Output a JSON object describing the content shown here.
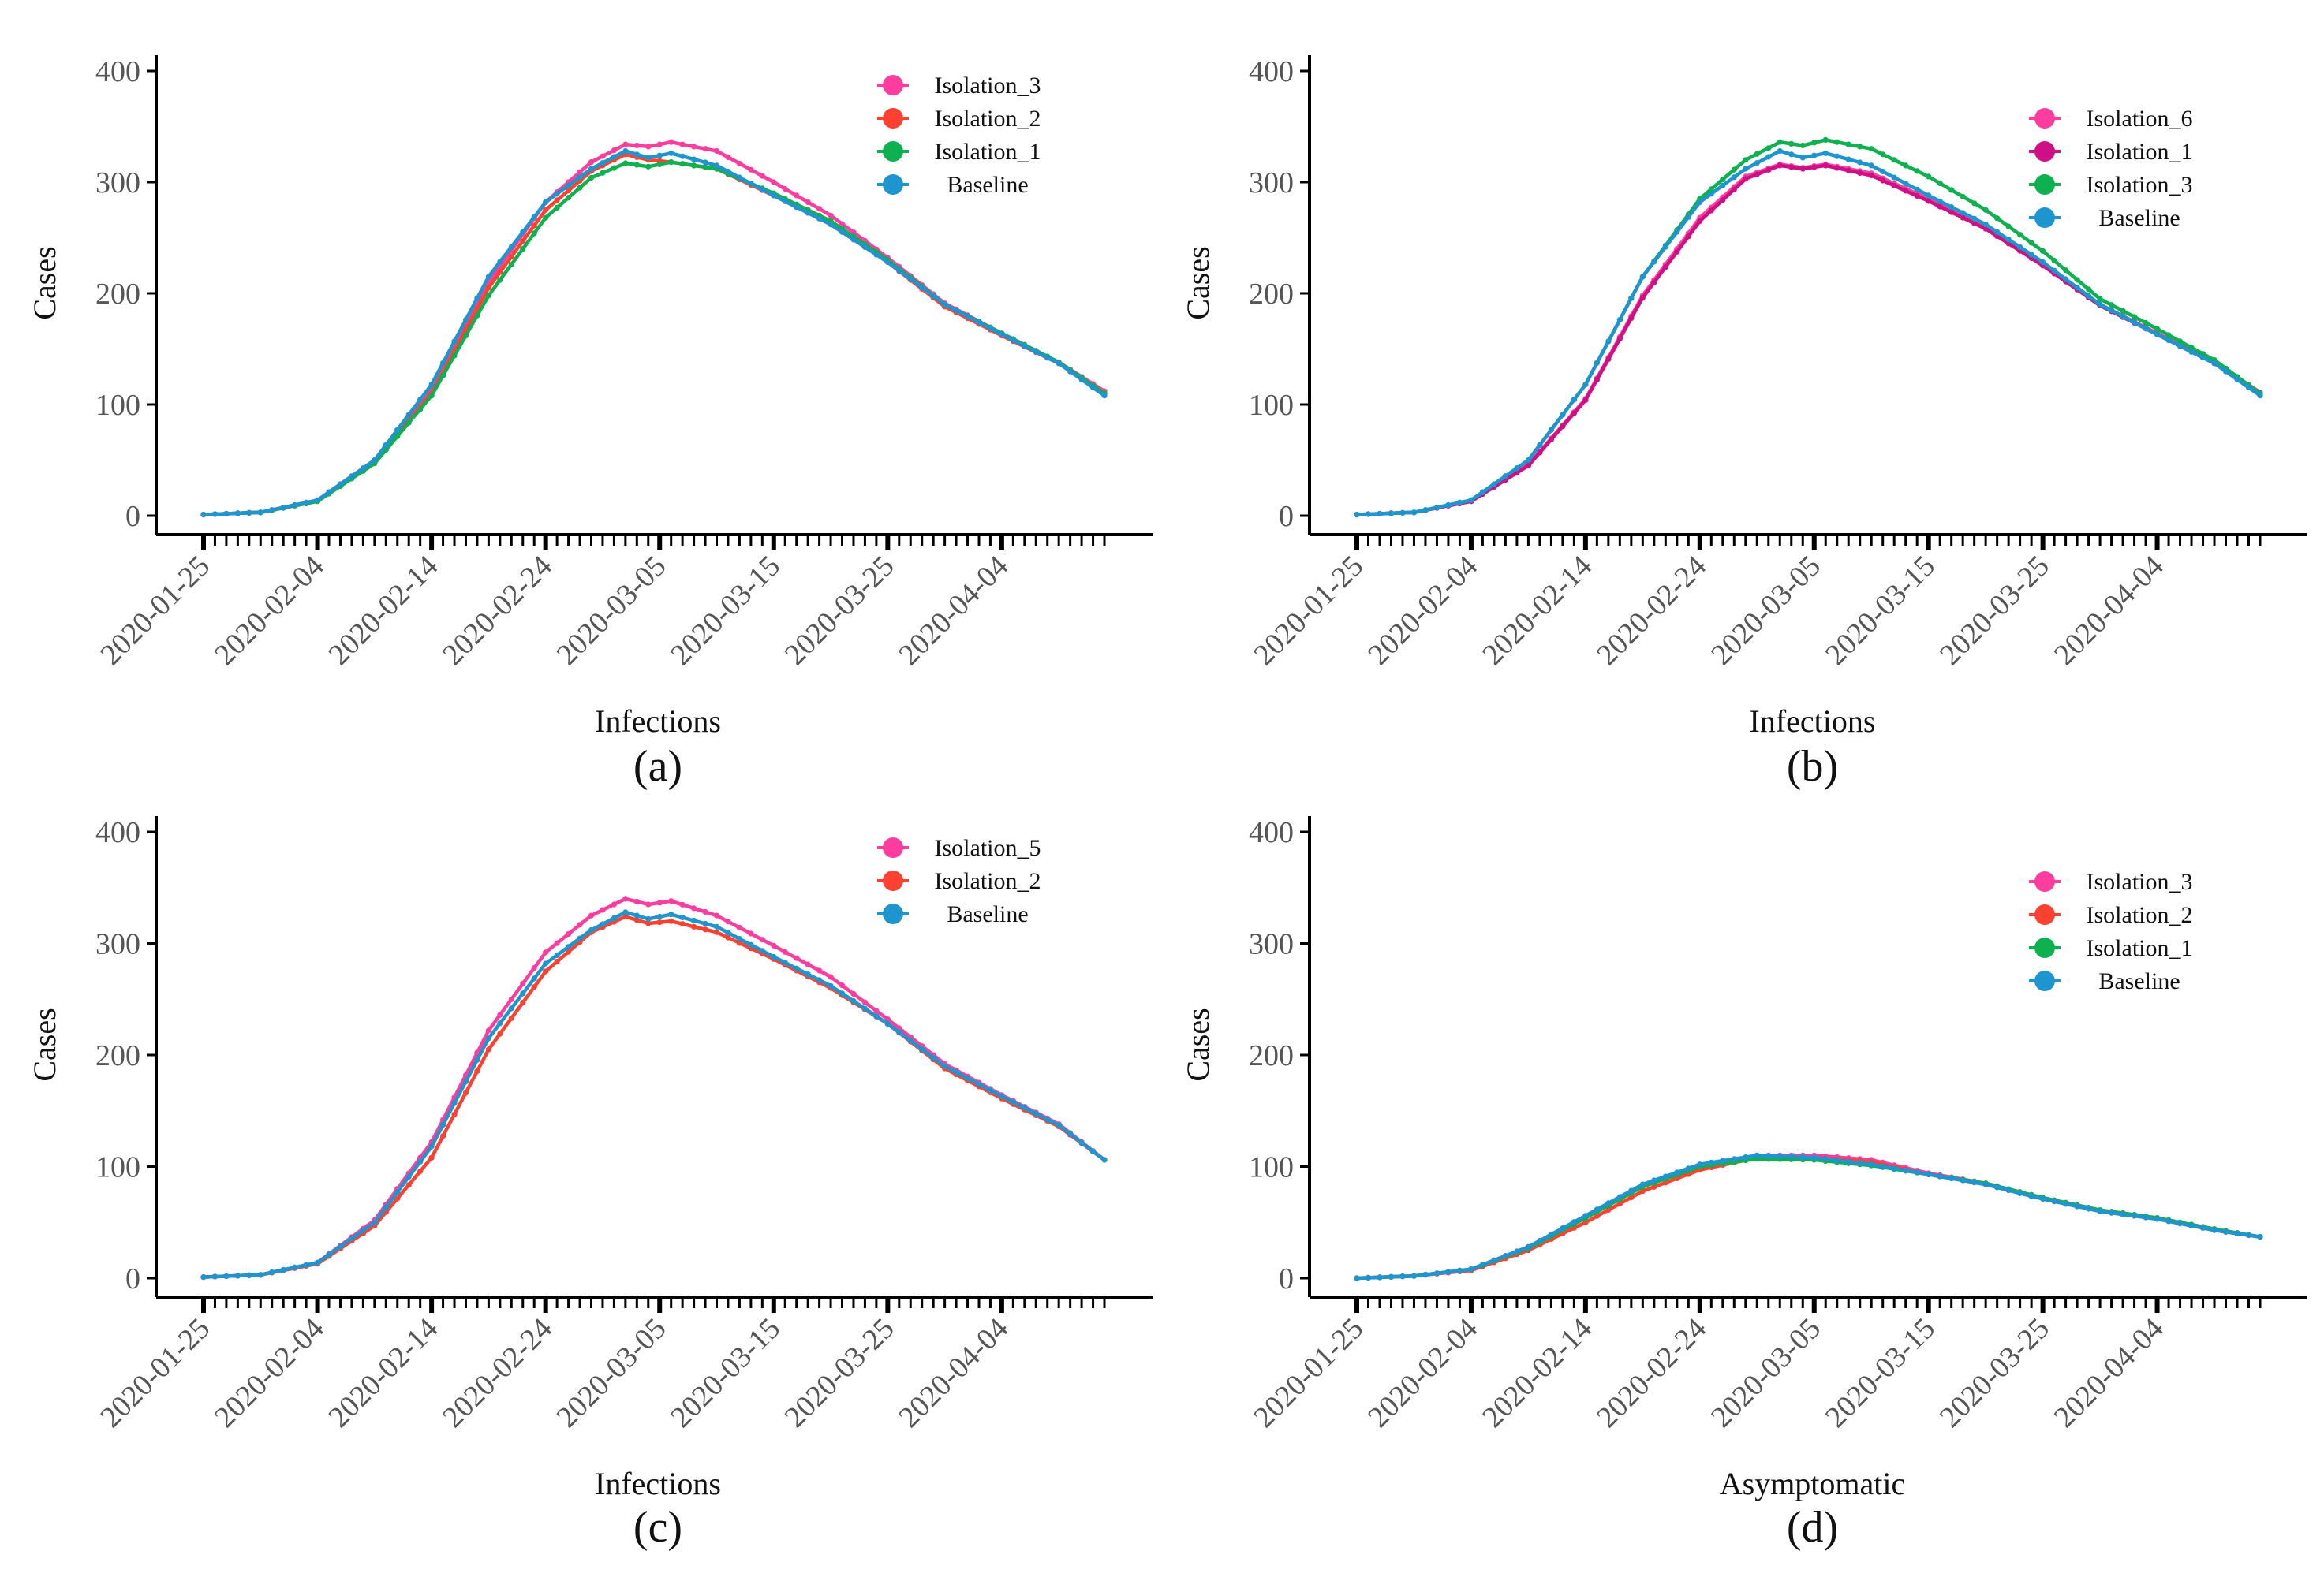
{
  "figure": {
    "colors": {
      "pink": "#ff3d9e",
      "red": "#ff4131",
      "green": "#0fb04f",
      "blue": "#1f95d0",
      "magenta": "#cf0f86"
    }
  },
  "chart_data": [
    {
      "type": "line",
      "panel_label": "(a)",
      "title": "",
      "xlabel": "Infections",
      "ylabel": "Cases",
      "ylim": [
        0,
        400
      ],
      "yticks": [
        "0",
        "100",
        "200",
        "300",
        "400"
      ],
      "x_start": "2020-01-25",
      "x_end": "2020-04-13",
      "x_ticks": [
        "2020-01-25",
        "2020-02-04",
        "2020-02-14",
        "2020-02-24",
        "2020-03-05",
        "2020-03-15",
        "2020-03-25",
        "2020-04-04"
      ],
      "legend": [
        "Isolation_3",
        "Isolation_2",
        "Isolation_1",
        "Baseline"
      ],
      "series": [
        {
          "name": "Isolation_3",
          "color": "#ff3d9e",
          "x": [
            0,
            5,
            10,
            15,
            20,
            25,
            30,
            34,
            37,
            39,
            41,
            45,
            50,
            55,
            60,
            65,
            70,
            75,
            79
          ],
          "values": [
            1,
            3,
            14,
            50,
            115,
            210,
            282,
            318,
            334,
            332,
            336,
            328,
            300,
            270,
            232,
            191,
            164,
            138,
            112
          ]
        },
        {
          "name": "Isolation_2",
          "color": "#ff4131",
          "x": [
            0,
            5,
            10,
            15,
            20,
            25,
            30,
            34,
            37,
            39,
            41,
            45,
            50,
            55,
            60,
            65,
            70,
            75,
            79
          ],
          "values": [
            1,
            3,
            13,
            48,
            110,
            205,
            275,
            310,
            325,
            320,
            318,
            312,
            288,
            262,
            228,
            188,
            162,
            137,
            110
          ]
        },
        {
          "name": "Isolation_1",
          "color": "#0fb04f",
          "x": [
            0,
            5,
            10,
            15,
            20,
            25,
            30,
            34,
            37,
            39,
            41,
            45,
            50,
            55,
            60,
            65,
            70,
            75,
            79
          ],
          "values": [
            1,
            3,
            13,
            47,
            108,
            198,
            268,
            304,
            317,
            314,
            318,
            312,
            290,
            265,
            230,
            190,
            164,
            138,
            110
          ]
        },
        {
          "name": "Baseline",
          "color": "#1f95d0",
          "x": [
            0,
            5,
            10,
            15,
            20,
            25,
            30,
            34,
            37,
            39,
            41,
            45,
            50,
            55,
            60,
            65,
            70,
            75,
            79
          ],
          "values": [
            1,
            3,
            14,
            50,
            118,
            215,
            282,
            312,
            328,
            322,
            326,
            315,
            288,
            262,
            228,
            190,
            163,
            137,
            108
          ]
        }
      ]
    },
    {
      "type": "line",
      "panel_label": "(b)",
      "title": "",
      "xlabel": "Infections",
      "ylabel": "Cases",
      "ylim": [
        0,
        400
      ],
      "yticks": [
        "0",
        "100",
        "200",
        "300",
        "400"
      ],
      "x_start": "2020-01-25",
      "x_end": "2020-04-13",
      "x_ticks": [
        "2020-01-25",
        "2020-02-04",
        "2020-02-14",
        "2020-02-24",
        "2020-03-05",
        "2020-03-15",
        "2020-03-25",
        "2020-04-04"
      ],
      "legend": [
        "Isolation_6",
        "Isolation_1",
        "Isolation_3",
        "Baseline"
      ],
      "series": [
        {
          "name": "Isolation_6",
          "color": "#ff3d9e",
          "x": [
            0,
            5,
            10,
            15,
            20,
            25,
            30,
            34,
            37,
            39,
            41,
            45,
            50,
            55,
            60,
            65,
            70,
            75,
            79
          ],
          "values": [
            1,
            3,
            13,
            46,
            105,
            198,
            268,
            305,
            316,
            313,
            316,
            308,
            285,
            260,
            226,
            190,
            164,
            138,
            111
          ]
        },
        {
          "name": "Isolation_1",
          "color": "#cf0f86",
          "x": [
            0,
            5,
            10,
            15,
            20,
            25,
            30,
            34,
            37,
            39,
            41,
            45,
            50,
            55,
            60,
            65,
            70,
            75,
            79
          ],
          "values": [
            1,
            3,
            13,
            45,
            104,
            196,
            265,
            303,
            315,
            312,
            315,
            306,
            283,
            258,
            225,
            189,
            163,
            137,
            110
          ]
        },
        {
          "name": "Isolation_3",
          "color": "#0fb04f",
          "x": [
            0,
            5,
            10,
            15,
            20,
            25,
            30,
            34,
            37,
            39,
            41,
            45,
            50,
            55,
            60,
            65,
            70,
            75,
            79
          ],
          "values": [
            1,
            3,
            14,
            50,
            118,
            215,
            285,
            320,
            336,
            333,
            338,
            330,
            305,
            275,
            238,
            195,
            168,
            140,
            110
          ]
        },
        {
          "name": "Baseline",
          "color": "#1f95d0",
          "x": [
            0,
            5,
            10,
            15,
            20,
            25,
            30,
            34,
            37,
            39,
            41,
            45,
            50,
            55,
            60,
            65,
            70,
            75,
            79
          ],
          "values": [
            1,
            3,
            14,
            50,
            118,
            215,
            282,
            312,
            328,
            322,
            326,
            315,
            288,
            262,
            228,
            190,
            163,
            137,
            108
          ]
        }
      ]
    },
    {
      "type": "line",
      "panel_label": "(c)",
      "title": "",
      "xlabel": "Infections",
      "ylabel": "Cases",
      "ylim": [
        0,
        400
      ],
      "yticks": [
        "0",
        "100",
        "200",
        "300",
        "400"
      ],
      "x_start": "2020-01-25",
      "x_end": "2020-04-13",
      "x_ticks": [
        "2020-01-25",
        "2020-02-04",
        "2020-02-14",
        "2020-02-24",
        "2020-03-05",
        "2020-03-15",
        "2020-03-25",
        "2020-04-04"
      ],
      "legend": [
        "Isolation_5",
        "Isolation_2",
        "Baseline"
      ],
      "series": [
        {
          "name": "Isolation_5",
          "color": "#ff3d9e",
          "x": [
            0,
            5,
            10,
            15,
            20,
            25,
            30,
            34,
            37,
            39,
            41,
            45,
            50,
            55,
            60,
            65,
            70,
            75,
            79
          ],
          "values": [
            1,
            3,
            14,
            52,
            122,
            222,
            292,
            325,
            340,
            335,
            338,
            325,
            298,
            270,
            232,
            192,
            164,
            138,
            106
          ]
        },
        {
          "name": "Isolation_2",
          "color": "#ff4131",
          "x": [
            0,
            5,
            10,
            15,
            20,
            25,
            30,
            34,
            37,
            39,
            41,
            45,
            50,
            55,
            60,
            65,
            70,
            75,
            79
          ],
          "values": [
            1,
            3,
            13,
            47,
            108,
            205,
            275,
            310,
            324,
            318,
            320,
            310,
            286,
            260,
            228,
            188,
            161,
            136,
            106
          ]
        },
        {
          "name": "Baseline",
          "color": "#1f95d0",
          "x": [
            0,
            5,
            10,
            15,
            20,
            25,
            30,
            34,
            37,
            39,
            41,
            45,
            50,
            55,
            60,
            65,
            70,
            75,
            79
          ],
          "values": [
            1,
            3,
            14,
            50,
            118,
            215,
            282,
            312,
            328,
            322,
            326,
            315,
            288,
            262,
            228,
            190,
            163,
            137,
            106
          ]
        }
      ]
    },
    {
      "type": "line",
      "panel_label": "(d)",
      "title": "",
      "xlabel": "Asymptomatic",
      "ylabel": "Cases",
      "ylim": [
        0,
        400
      ],
      "yticks": [
        "0",
        "100",
        "200",
        "300",
        "400"
      ],
      "x_start": "2020-01-25",
      "x_end": "2020-04-13",
      "x_ticks": [
        "2020-01-25",
        "2020-02-04",
        "2020-02-14",
        "2020-02-24",
        "2020-03-05",
        "2020-03-15",
        "2020-03-25",
        "2020-04-04"
      ],
      "legend": [
        "Isolation_3",
        "Isolation_2",
        "Isolation_1",
        "Baseline"
      ],
      "series": [
        {
          "name": "Isolation_3",
          "color": "#ff3d9e",
          "x": [
            0,
            5,
            10,
            15,
            20,
            25,
            30,
            35,
            40,
            45,
            50,
            55,
            60,
            65,
            70,
            75,
            79
          ],
          "values": [
            0,
            2,
            8,
            28,
            55,
            82,
            100,
            110,
            110,
            106,
            94,
            85,
            72,
            61,
            54,
            44,
            37
          ]
        },
        {
          "name": "Isolation_2",
          "color": "#ff4131",
          "x": [
            0,
            5,
            10,
            15,
            20,
            25,
            30,
            35,
            40,
            45,
            50,
            55,
            60,
            65,
            70,
            75,
            79
          ],
          "values": [
            0,
            2,
            7,
            25,
            50,
            78,
            97,
            108,
            108,
            104,
            93,
            84,
            71,
            60,
            53,
            43,
            37
          ]
        },
        {
          "name": "Isolation_1",
          "color": "#0fb04f",
          "x": [
            0,
            5,
            10,
            15,
            20,
            25,
            30,
            35,
            40,
            45,
            50,
            55,
            60,
            65,
            70,
            75,
            79
          ],
          "values": [
            0,
            2,
            8,
            27,
            54,
            82,
            100,
            107,
            106,
            101,
            93,
            85,
            72,
            61,
            54,
            44,
            37
          ]
        },
        {
          "name": "Baseline",
          "color": "#1f95d0",
          "x": [
            0,
            5,
            10,
            15,
            20,
            25,
            30,
            35,
            40,
            45,
            50,
            55,
            60,
            65,
            70,
            75,
            79
          ],
          "values": [
            0,
            2,
            8,
            28,
            56,
            84,
            102,
            110,
            108,
            102,
            93,
            84,
            71,
            60,
            53,
            43,
            37
          ]
        }
      ]
    }
  ]
}
